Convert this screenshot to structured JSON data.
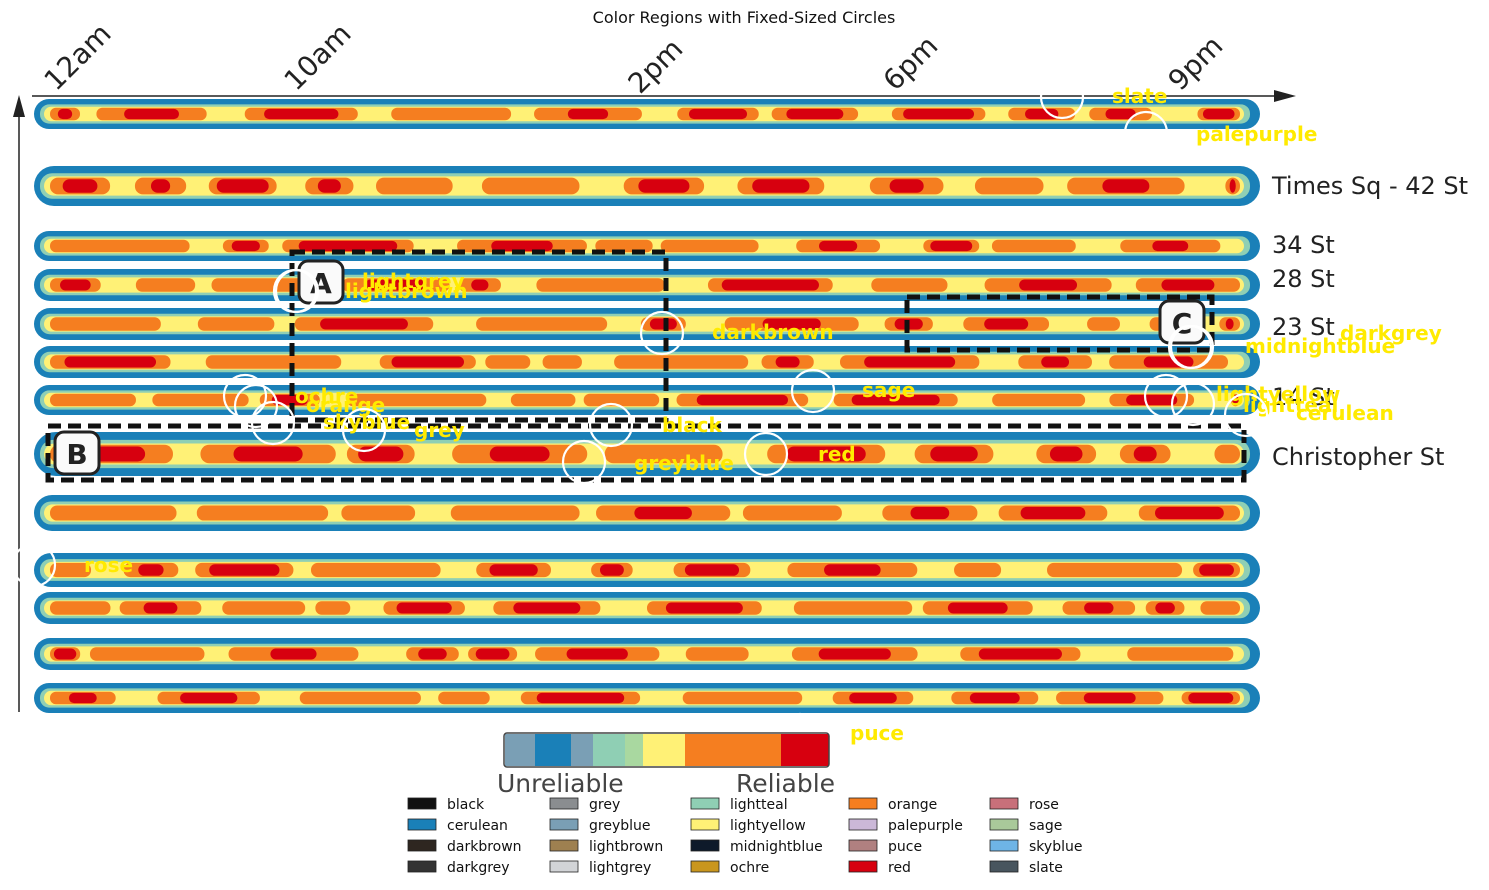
{
  "chart_data": {
    "type": "heatmap",
    "title": "Color Regions with Fixed-Sized Circles",
    "time_ticks": [
      "12am",
      "10am",
      "2pm",
      "6pm",
      "9pm"
    ],
    "stations": [
      "Times Sq - 42 St",
      "34 St",
      "28 St",
      "23 St",
      "14 St",
      "Christopher St"
    ],
    "box_labels": [
      "A",
      "B",
      "C"
    ],
    "colorbar": {
      "colors": [
        "#7a9fb5",
        "#1a80b8",
        "#7a9fb5",
        "#8fcfb4",
        "#a9d8a0",
        "#fff176",
        "#f57e20",
        "#d7000f"
      ],
      "low_label": "Unreliable",
      "high_label": "Reliable"
    },
    "annotation_color": "#ffea00",
    "circle_labels": [
      "slate",
      "palepurple",
      "lightgrey",
      "lightbrown",
      "darkbrown",
      "darkgrey",
      "midnightblue",
      "sage",
      "ochre",
      "orange",
      "skyblue",
      "grey",
      "black",
      "lightyellow",
      "lightteal",
      "cerulean",
      "red",
      "greyblue",
      "rose",
      "puce"
    ],
    "legend": [
      {
        "label": "black",
        "color": "#111111"
      },
      {
        "label": "cerulean",
        "color": "#1a80b8"
      },
      {
        "label": "darkbrown",
        "color": "#2e2620"
      },
      {
        "label": "darkgrey",
        "color": "#333333"
      },
      {
        "label": "grey",
        "color": "#8a8d90"
      },
      {
        "label": "greyblue",
        "color": "#7a9fb5"
      },
      {
        "label": "lightbrown",
        "color": "#9e8050"
      },
      {
        "label": "lightgrey",
        "color": "#d2d4d7"
      },
      {
        "label": "lightteal",
        "color": "#8fcfb4"
      },
      {
        "label": "lightyellow",
        "color": "#fff176"
      },
      {
        "label": "midnightblue",
        "color": "#0e1a2a"
      },
      {
        "label": "ochre",
        "color": "#c9961e"
      },
      {
        "label": "orange",
        "color": "#f57e20"
      },
      {
        "label": "palepurple",
        "color": "#cbb8d8"
      },
      {
        "label": "puce",
        "color": "#b08080"
      },
      {
        "label": "red",
        "color": "#d7000f"
      },
      {
        "label": "rose",
        "color": "#c8707a"
      },
      {
        "label": "sage",
        "color": "#a9c99a"
      },
      {
        "label": "skyblue",
        "color": "#6eb4e6"
      },
      {
        "label": "slate",
        "color": "#48555e"
      }
    ]
  }
}
